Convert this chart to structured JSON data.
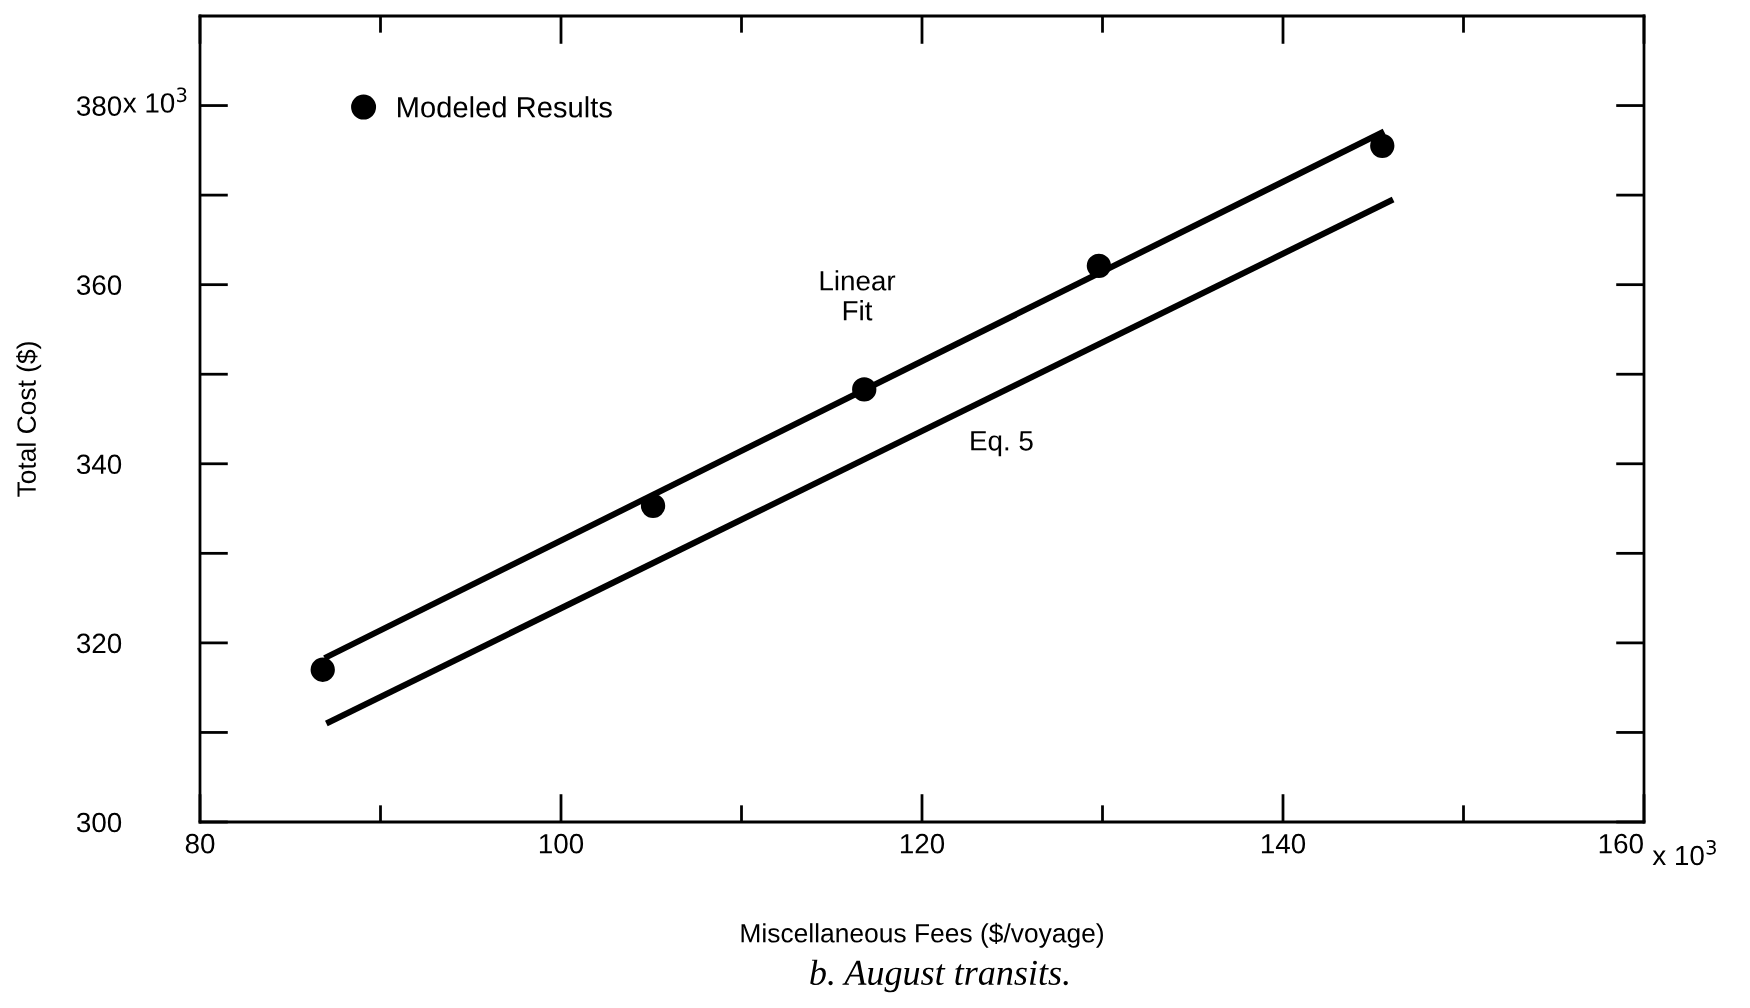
{
  "chart_data": {
    "type": "scatter",
    "xlabel": "Miscellaneous Fees ($/voyage)",
    "ylabel": "Total Cost ($)",
    "series": [
      {
        "name": "Modeled Results",
        "color": "#000000",
        "marker": "circle",
        "x": [
          86.8,
          105.1,
          116.8,
          129.8,
          145.5
        ],
        "values": [
          317.0,
          335.3,
          348.3,
          362.1,
          375.5
        ]
      },
      {
        "type": "line",
        "color": "#000000",
        "marker": "none",
        "line_style": "solid",
        "x": [
          86.9,
          145.6
        ],
        "values": [
          318.3,
          377.1
        ]
      },
      {
        "type": "line",
        "color": "#000000",
        "marker": "none",
        "line_style": "solid",
        "x": [
          87.0,
          146.1
        ],
        "values": [
          311.0,
          369.5
        ]
      }
    ],
    "xlim": [
      80,
      160
    ],
    "ylim": [
      300,
      390
    ],
    "xticks": [
      80,
      {
        "value": 90,
        "label": null
      },
      100,
      {
        "value": 110,
        "label": null
      },
      120,
      {
        "value": 130,
        "label": null
      },
      140,
      {
        "value": 150,
        "label": null
      },
      160
    ],
    "yticks": [
      300,
      {
        "value": 310,
        "label": null
      },
      320,
      {
        "value": 330,
        "label": null
      },
      340,
      {
        "value": 350,
        "label": null
      },
      360,
      {
        "value": 370,
        "label": null
      },
      380
    ],
    "grid": false,
    "legend": "top left",
    "annotations": [
      "Linear\nFit",
      "Eq. 5",
      "x 10$^{3}$",
      "x 10$^{3}$",
      "b. August transits."
    ]
  }
}
